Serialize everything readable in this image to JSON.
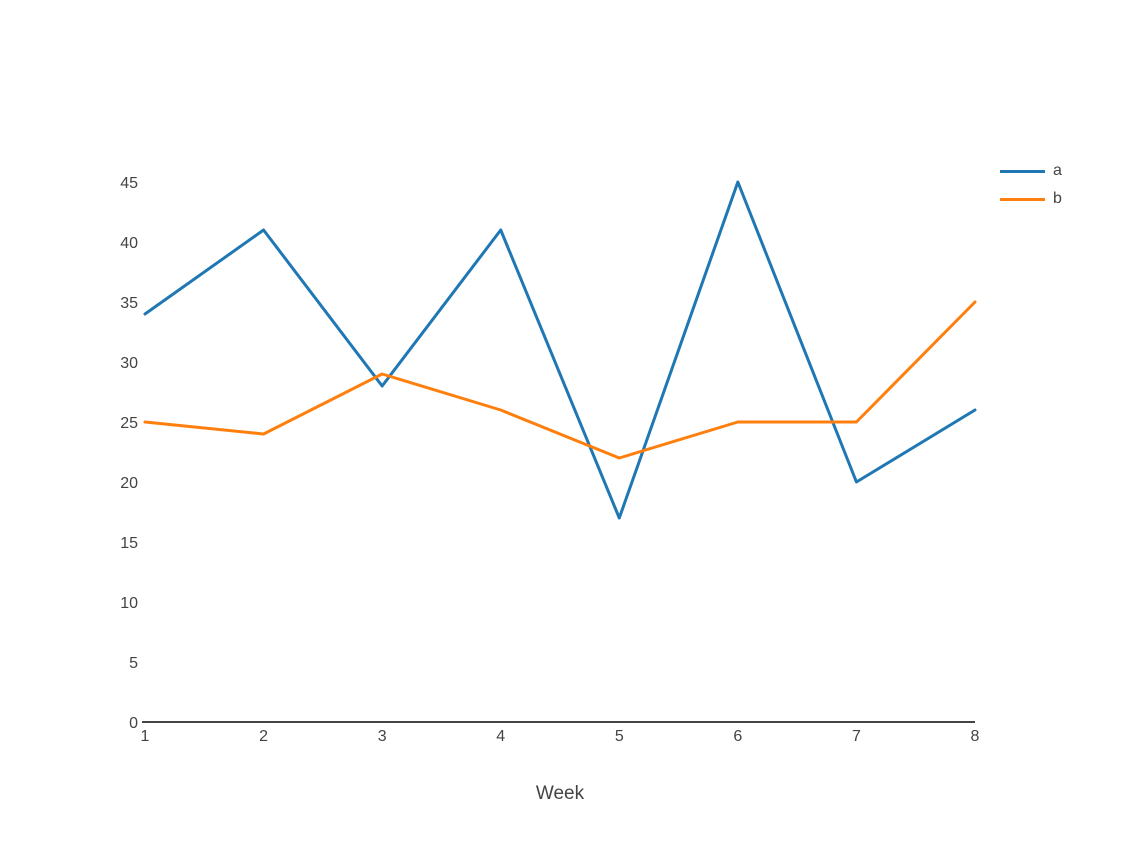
{
  "chart_data": {
    "type": "line",
    "title": "",
    "xlabel": "Week",
    "ylabel": "",
    "x": [
      1,
      2,
      3,
      4,
      5,
      6,
      7,
      8
    ],
    "x_ticks": [
      "1",
      "2",
      "3",
      "4",
      "5",
      "6",
      "7",
      "8"
    ],
    "y_ticks": [
      "0",
      "5",
      "10",
      "15",
      "20",
      "25",
      "30",
      "35",
      "40",
      "45"
    ],
    "xlim": [
      1,
      8
    ],
    "ylim": [
      0,
      45
    ],
    "grid": false,
    "legend_position": "top-right",
    "background_color": "#ffffff",
    "axis_color": "#444444",
    "text_color": "#444444",
    "series": [
      {
        "name": "a",
        "color": "#1f77b4",
        "values": [
          34,
          41,
          28,
          41,
          17,
          45,
          20,
          26
        ]
      },
      {
        "name": "b",
        "color": "#ff7f0e",
        "values": [
          25,
          24,
          29,
          26,
          22,
          25,
          25,
          35
        ]
      }
    ]
  }
}
